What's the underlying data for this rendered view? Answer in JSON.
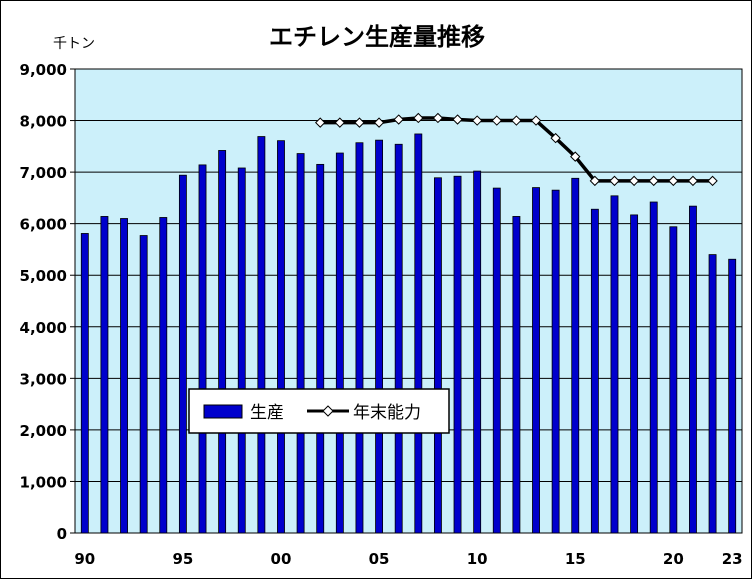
{
  "chart_data": {
    "type": "bar",
    "title": "エチレン生産量推移",
    "unit_label": "千トン",
    "ylim": [
      0,
      9000
    ],
    "y_ticks": [
      0,
      1000,
      2000,
      3000,
      4000,
      5000,
      6000,
      7000,
      8000,
      9000
    ],
    "y_tick_labels": [
      "0",
      "1,000",
      "2,000",
      "3,000",
      "4,000",
      "5,000",
      "6,000",
      "7,000",
      "8,000",
      "9,000"
    ],
    "x_years": [
      1990,
      1991,
      1992,
      1993,
      1994,
      1995,
      1996,
      1997,
      1998,
      1999,
      2000,
      2001,
      2002,
      2003,
      2004,
      2005,
      2006,
      2007,
      2008,
      2009,
      2010,
      2011,
      2012,
      2013,
      2014,
      2015,
      2016,
      2017,
      2018,
      2019,
      2020,
      2021,
      2022,
      2023
    ],
    "x_tick_labels": [
      {
        "year": 1990,
        "label": "90"
      },
      {
        "year": 1995,
        "label": "95"
      },
      {
        "year": 2000,
        "label": "00"
      },
      {
        "year": 2005,
        "label": "05"
      },
      {
        "year": 2010,
        "label": "10"
      },
      {
        "year": 2015,
        "label": "15"
      },
      {
        "year": 2020,
        "label": "20"
      },
      {
        "year": 2023,
        "label": "23"
      }
    ],
    "series": [
      {
        "name": "生産",
        "type": "bar",
        "color": "#0000cc",
        "years": [
          1990,
          1991,
          1992,
          1993,
          1994,
          1995,
          1996,
          1997,
          1998,
          1999,
          2000,
          2001,
          2002,
          2003,
          2004,
          2005,
          2006,
          2007,
          2008,
          2009,
          2010,
          2011,
          2012,
          2013,
          2014,
          2015,
          2016,
          2017,
          2018,
          2019,
          2020,
          2021,
          2022,
          2023
        ],
        "values": [
          5810,
          6140,
          6100,
          5770,
          6120,
          6940,
          7140,
          7420,
          7080,
          7690,
          7610,
          7360,
          7150,
          7370,
          7570,
          7620,
          7540,
          7740,
          6890,
          6920,
          7020,
          6690,
          6140,
          6700,
          6650,
          6880,
          6280,
          6540,
          6170,
          6420,
          5940,
          6340,
          5400,
          5310
        ]
      },
      {
        "name": "年末能力",
        "type": "line",
        "color": "#000000",
        "years": [
          2002,
          2003,
          2004,
          2005,
          2006,
          2007,
          2008,
          2009,
          2010,
          2011,
          2012,
          2013,
          2014,
          2015,
          2016,
          2017,
          2018,
          2019,
          2020,
          2021,
          2022
        ],
        "values": [
          7960,
          7960,
          7960,
          7960,
          8020,
          8050,
          8050,
          8020,
          8000,
          8000,
          8000,
          8000,
          7660,
          7300,
          6830,
          6830,
          6830,
          6830,
          6830,
          6830,
          6830
        ]
      }
    ],
    "plot_background": "#ccf0fa",
    "grid": true,
    "legend_position": "lower-left"
  }
}
